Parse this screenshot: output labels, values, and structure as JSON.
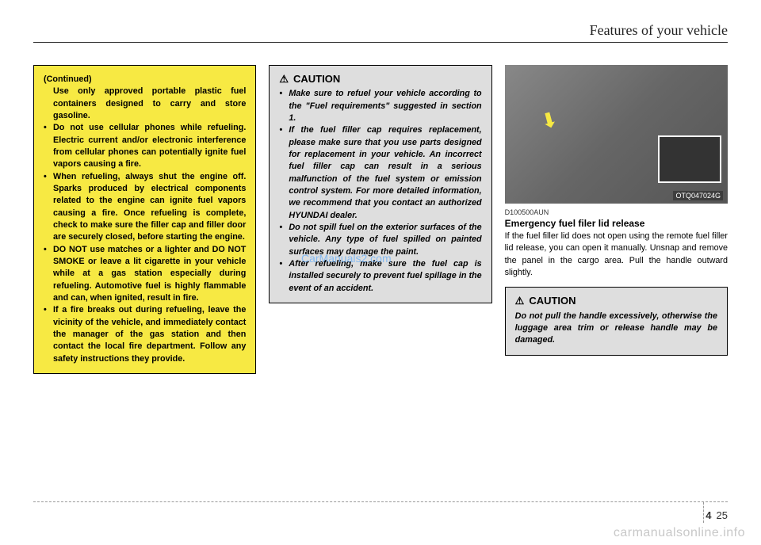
{
  "header": {
    "title": "Features of your vehicle"
  },
  "col1": {
    "continued_label": "(Continued)",
    "continued_text": "Use only approved portable plastic fuel containers designed to carry and store gasoline.",
    "bullets": [
      "Do not use cellular phones while refueling. Electric current and/or electronic interference from cellular phones can potentially ignite fuel vapors causing a fire.",
      "When refueling, always shut the engine off. Sparks produced by electrical components related to the engine can ignite fuel vapors causing a fire. Once refueling is complete, check to make sure the filler cap and filler door are securely closed, before starting the engine.",
      "DO NOT use matches or a lighter and DO NOT SMOKE or leave a lit cigarette in your vehicle while at a gas station especially during refueling. Automotive fuel is highly flammable and can, when ignited, result in fire.",
      "If a fire breaks out during refueling, leave the vicinity of the vehicle, and immediately contact the manager of the gas station and then contact the local fire department. Follow any safety instructions they provide."
    ]
  },
  "col2": {
    "caution_label": "CAUTION",
    "bullets": [
      "Make sure to refuel your vehicle according to the \"Fuel requirements\" suggested in section 1.",
      "If the fuel filler cap requires replacement, please make sure that you use parts designed for replacement in your vehicle. An incorrect fuel filler cap can result in a serious malfunction of the fuel system or emission control system. For more detailed information, we recommend that you contact an authorized HYUNDAI dealer.",
      "Do not spill fuel on the exterior surfaces of the vehicle. Any type of fuel spilled on painted surfaces may damage the paint.",
      "After refueling, make sure the fuel cap is installed securely to prevent fuel spillage in the event of an accident."
    ]
  },
  "col3": {
    "image_code": "OTQ047024G",
    "code": "D100500AUN",
    "heading": "Emergency fuel filer lid release",
    "body": "If the fuel filler lid does not open using the remote fuel filler lid release, you can open it manually. Unsnap and remove the panel in the cargo area. Pull the handle outward slightly.",
    "caution_label": "CAUTION",
    "caution_text": "Do not pull the handle excessively, otherwise the luggage area trim or release handle may be damaged."
  },
  "watermark": "CarManuals2.com",
  "page": {
    "section": "4",
    "number": "25"
  },
  "bottom_watermark": "carmanualsonline.info"
}
